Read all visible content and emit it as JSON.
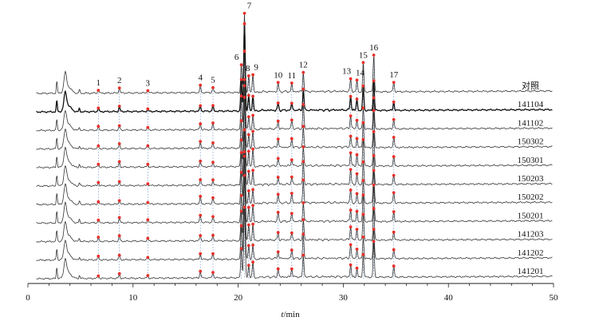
{
  "chart_data": {
    "type": "line",
    "xlabel_italic": "t",
    "xlabel_rest": "/min",
    "xlim": [
      0,
      50
    ],
    "x_ticks": [
      0,
      10,
      20,
      30,
      40,
      50
    ],
    "reference_label": "对照",
    "samples": [
      "141104",
      "141102",
      "150302",
      "150301",
      "150203",
      "150202",
      "150201",
      "141203",
      "141202",
      "141201"
    ],
    "marker_color": "#e8302a",
    "line_color": "#333333",
    "peaks": [
      {
        "label": "1",
        "t": 6.7,
        "rel_height": 0.04
      },
      {
        "label": "2",
        "t": 8.7,
        "rel_height": 0.06
      },
      {
        "label": "3",
        "t": 11.4,
        "rel_height": 0.03
      },
      {
        "label": "4",
        "t": 16.4,
        "rel_height": 0.08
      },
      {
        "label": "5",
        "t": 17.6,
        "rel_height": 0.07
      },
      {
        "label": "6",
        "t": 20.3,
        "rel_height": 0.38
      },
      {
        "label": "7",
        "t": 20.6,
        "rel_height": 1.0
      },
      {
        "label": "8",
        "t": 21.0,
        "rel_height": 0.18
      },
      {
        "label": "9",
        "t": 21.4,
        "rel_height": 0.2
      },
      {
        "label": "10",
        "t": 23.8,
        "rel_height": 0.1
      },
      {
        "label": "11",
        "t": 25.1,
        "rel_height": 0.1
      },
      {
        "label": "12",
        "t": 26.2,
        "rel_height": 0.27
      },
      {
        "label": "13",
        "t": 30.7,
        "rel_height": 0.16
      },
      {
        "label": "14",
        "t": 31.3,
        "rel_height": 0.13
      },
      {
        "label": "15",
        "t": 31.9,
        "rel_height": 0.31
      },
      {
        "label": "16",
        "t": 32.9,
        "rel_height": 0.42
      },
      {
        "label": "17",
        "t": 34.8,
        "rel_height": 0.12
      }
    ]
  }
}
